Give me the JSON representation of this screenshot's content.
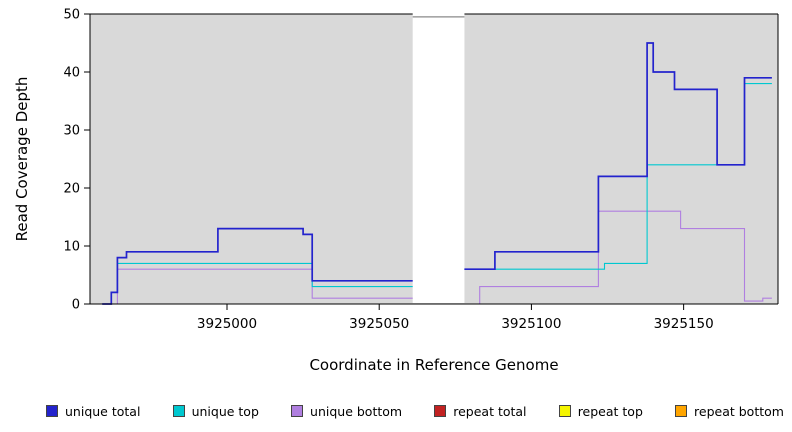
{
  "chart_data": {
    "type": "line",
    "subtype": "step-coverage",
    "title": "",
    "xlabel": "Coordinate in Reference Genome",
    "ylabel": "Read Coverage Depth",
    "xlim": [
      3924955,
      3925181
    ],
    "ylim": [
      0,
      50
    ],
    "xticks": [
      3925000,
      3925050,
      3925100,
      3925150
    ],
    "yticks": [
      0,
      10,
      20,
      30,
      40,
      50
    ],
    "panel_bg": "#d9d9d9",
    "masked_region": {
      "x0": 3925061,
      "x1": 3925078,
      "clip_value": 49.5,
      "fill": "#ffffff",
      "clip_line_color": "#8a8a8a"
    },
    "legend_position": "bottom",
    "grid": false,
    "series": [
      {
        "name": "unique total",
        "color": "#2323cd",
        "width": 1.7,
        "segments": [
          [
            [
              3924959,
              0
            ],
            [
              3924962,
              2
            ],
            [
              3924964,
              8
            ],
            [
              3924967,
              9
            ],
            [
              3924997,
              13
            ],
            [
              3925025,
              12
            ],
            [
              3925028,
              4
            ],
            [
              3925061,
              4
            ]
          ],
          [
            [
              3925078,
              6
            ],
            [
              3925088,
              9
            ],
            [
              3925122,
              22
            ],
            [
              3925138,
              45
            ],
            [
              3925140,
              40
            ],
            [
              3925147,
              37
            ],
            [
              3925161,
              24
            ],
            [
              3925170,
              39
            ],
            [
              3925179,
              39
            ]
          ]
        ]
      },
      {
        "name": "unique top",
        "color": "#00c8d0",
        "width": 1.1,
        "segments": [
          [
            [
              3924959,
              0
            ],
            [
              3924962,
              2
            ],
            [
              3924964,
              7
            ],
            [
              3925025,
              7
            ],
            [
              3925028,
              3
            ],
            [
              3925061,
              3
            ]
          ],
          [
            [
              3925078,
              6
            ],
            [
              3925124,
              7
            ],
            [
              3925138,
              24
            ],
            [
              3925170,
              38
            ],
            [
              3925179,
              38
            ]
          ]
        ]
      },
      {
        "name": "unique bottom",
        "color": "#b07fe0",
        "width": 1.1,
        "segments": [
          [
            [
              3924959,
              0
            ],
            [
              3924964,
              6
            ],
            [
              3925025,
              6
            ],
            [
              3925028,
              1
            ],
            [
              3925061,
              1
            ]
          ],
          [
            [
              3925078,
              0
            ],
            [
              3925083,
              3
            ],
            [
              3925122,
              16
            ],
            [
              3925149,
              13
            ],
            [
              3925170,
              0.5
            ],
            [
              3925176,
              1
            ],
            [
              3925179,
              1
            ]
          ]
        ]
      },
      {
        "name": "repeat total",
        "color": "#c22222",
        "width": 1.1,
        "segments": [
          [
            [
              3924959,
              0
            ],
            [
              3925061,
              0
            ]
          ],
          [
            [
              3925078,
              0
            ],
            [
              3925179,
              0
            ]
          ]
        ]
      },
      {
        "name": "repeat top",
        "color": "#f5f500",
        "width": 1.1,
        "segments": [
          [
            [
              3924959,
              0
            ],
            [
              3925061,
              0
            ]
          ],
          [
            [
              3925078,
              0
            ],
            [
              3925179,
              0
            ]
          ]
        ]
      },
      {
        "name": "repeat bottom",
        "color": "#ffa500",
        "width": 1.1,
        "segments": [
          [
            [
              3924959,
              0
            ],
            [
              3925061,
              0
            ]
          ],
          [
            [
              3925078,
              0
            ],
            [
              3925179,
              0
            ]
          ]
        ]
      }
    ]
  }
}
